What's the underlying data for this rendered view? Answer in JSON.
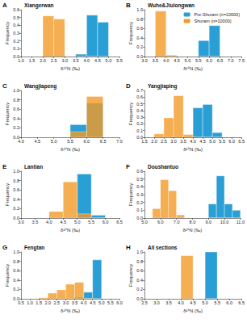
{
  "chart_data": [
    {
      "type": "histogram",
      "panel_label": "A",
      "title": "Xiangerwan",
      "x_label": "δ¹⁵N (‰)",
      "y_label": "Frequency",
      "grid": false,
      "bins": [
        2.0,
        2.5,
        3.0,
        3.5,
        4.0,
        4.5,
        5.0
      ],
      "series": [
        {
          "name": "Pre-Shuram (n=10000)",
          "color": "#2a9fd6",
          "values": [
            0,
            0,
            0,
            0.03,
            0.53,
            0.44
          ]
        },
        {
          "name": "Shuram (n=10000)",
          "color": "#f29a26",
          "values": [
            0.52,
            0.48,
            0,
            0,
            0,
            0
          ]
        }
      ],
      "xlim": [
        1.0,
        5.5
      ],
      "xticks": [
        {
          "value": 1,
          "label": "1.0"
        },
        1.5,
        {
          "value": 2,
          "label": "2.0"
        },
        2.5,
        {
          "value": 3,
          "label": "3.0"
        },
        3.5,
        {
          "value": 4,
          "label": "4.0"
        },
        4.5,
        {
          "value": 5,
          "label": "5.0"
        },
        5.5
      ],
      "ylim": [
        0,
        0.6
      ],
      "yticks": [
        {
          "value": 0,
          "label": "0.0"
        },
        0.1,
        0.2,
        0.3,
        0.4,
        0.5,
        0.6
      ]
    },
    {
      "type": "histogram",
      "panel_label": "B",
      "title": "Wuhe&Jiulongwan",
      "x_label": "δ¹⁵N (‰)",
      "y_label": "Frequency",
      "grid": false,
      "legend": "upper right",
      "bins": [
        3.5,
        4.0,
        4.5,
        5.0,
        5.5,
        6.0,
        6.5
      ],
      "series": [
        {
          "name": "Pre-Shuram (n=10000)",
          "color": "#2a9fd6",
          "values": [
            0,
            0,
            0,
            0,
            0.34,
            0.66
          ]
        },
        {
          "name": "Shuram (n=10000)",
          "color": "#f29a26",
          "values": [
            0.97,
            0.03,
            0,
            0,
            0,
            0
          ]
        }
      ],
      "xlim": [
        3.0,
        7.5
      ],
      "xticks": [
        {
          "value": 3,
          "label": "3.0"
        },
        3.5,
        {
          "value": 4,
          "label": "4.0"
        },
        4.5,
        {
          "value": 5,
          "label": "5.0"
        },
        5.5,
        {
          "value": 6,
          "label": "6.0"
        },
        6.5,
        {
          "value": 7,
          "label": "7.0"
        },
        7.5
      ],
      "ylim": [
        0,
        1.0
      ],
      "yticks": [
        {
          "value": 0,
          "label": "0.0"
        },
        0.2,
        0.4,
        0.6,
        0.8,
        {
          "value": 1,
          "label": "1.0"
        }
      ]
    },
    {
      "type": "histogram",
      "panel_label": "C",
      "title": "Wangjiapeng",
      "x_label": "δ¹⁵N (‰)",
      "y_label": "Frequency",
      "grid": false,
      "bins": [
        5.5,
        6.0,
        6.5
      ],
      "series": [
        {
          "name": "Pre-Shuram (n=10000)",
          "color": "#2a9fd6",
          "values": [
            0.27,
            0.73
          ]
        },
        {
          "name": "Shuram (n=10000)",
          "color": "#f29a26",
          "values": [
            0.12,
            0.87
          ]
        }
      ],
      "xlim": [
        4.0,
        7.0
      ],
      "xticks": [
        {
          "value": 4,
          "label": "4.0"
        },
        4.5,
        {
          "value": 5,
          "label": "5.0"
        },
        5.5,
        {
          "value": 6,
          "label": "6.0"
        },
        6.5,
        {
          "value": 7,
          "label": "7.0"
        }
      ],
      "ylim": [
        0,
        1.0
      ],
      "yticks": [
        {
          "value": 0,
          "label": "0.0"
        },
        0.2,
        0.4,
        0.6,
        0.8,
        {
          "value": 1,
          "label": "1.0"
        }
      ]
    },
    {
      "type": "histogram",
      "panel_label": "D",
      "title": "Yangjiaping",
      "x_label": "δ¹⁵N (‰)",
      "y_label": "Frequency",
      "grid": false,
      "bins": [
        2.0,
        2.5,
        3.0,
        3.5,
        4.0,
        4.5,
        5.0,
        5.5
      ],
      "series": [
        {
          "name": "Pre-Shuram (n=10000)",
          "color": "#2a9fd6",
          "values": [
            0,
            0,
            0,
            0,
            0.44,
            0.49,
            0.07
          ]
        },
        {
          "name": "Shuram (n=10000)",
          "color": "#f29a26",
          "values": [
            0.05,
            0.29,
            0.62,
            0.04,
            0,
            0,
            0
          ]
        }
      ],
      "xlim": [
        1.5,
        6.5
      ],
      "xticks": [
        1.5,
        {
          "value": 2,
          "label": "2.0"
        },
        2.5,
        {
          "value": 3,
          "label": "3.0"
        },
        3.5,
        {
          "value": 4,
          "label": "4.0"
        },
        4.5,
        {
          "value": 5,
          "label": "5.0"
        },
        5.5,
        {
          "value": 6,
          "label": "6.0"
        },
        6.5
      ],
      "ylim": [
        0,
        0.7
      ],
      "yticks": [
        {
          "value": 0,
          "label": "0.0"
        },
        0.1,
        0.2,
        0.3,
        0.4,
        0.5,
        0.6,
        0.7
      ]
    },
    {
      "type": "histogram",
      "panel_label": "E",
      "title": "Lantian",
      "x_label": "δ¹⁵N (‰)",
      "y_label": "Frequency",
      "grid": false,
      "bins": [
        4.0,
        4.5,
        5.0,
        5.5,
        6.0
      ],
      "series": [
        {
          "name": "Pre-Shuram (n=10000)",
          "color": "#2a9fd6",
          "values": [
            0,
            0,
            0.94,
            0.06
          ]
        },
        {
          "name": "Shuram (n=10000)",
          "color": "#f29a26",
          "values": [
            0.14,
            0.77,
            0.09,
            0
          ]
        }
      ],
      "xlim": [
        3.0,
        6.5
      ],
      "xticks": [
        {
          "value": 3,
          "label": "3.0"
        },
        3.5,
        {
          "value": 4,
          "label": "4.0"
        },
        4.5,
        {
          "value": 5,
          "label": "5.0"
        },
        5.5,
        {
          "value": 6,
          "label": "6.0"
        },
        6.5
      ],
      "ylim": [
        0,
        1.0
      ],
      "yticks": [
        {
          "value": 0,
          "label": "0.0"
        },
        0.2,
        0.4,
        0.6,
        0.8,
        {
          "value": 1,
          "label": "1.0"
        }
      ]
    },
    {
      "type": "histogram",
      "panel_label": "F",
      "title": "Doushantuo",
      "x_label": "δ¹⁵N (‰)",
      "y_label": "Frequency",
      "grid": false,
      "bins": [
        5.5,
        6.0,
        6.5,
        7.0,
        7.5,
        8.0,
        8.5,
        9.0,
        9.5,
        10.0,
        10.5,
        11.0
      ],
      "series": [
        {
          "name": "Pre-Shuram (n=10000)",
          "color": "#2a9fd6",
          "values": [
            0,
            0,
            0,
            0,
            0,
            0,
            0,
            0.18,
            0.54,
            0.18,
            0.1
          ]
        },
        {
          "name": "Shuram (n=10000)",
          "color": "#f29a26",
          "values": [
            0.12,
            0.49,
            0.35,
            0.04,
            0,
            0,
            0,
            0,
            0,
            0,
            0
          ]
        }
      ],
      "xlim": [
        5.0,
        11.0
      ],
      "xticks": [
        {
          "value": 5,
          "label": "5.0"
        },
        {
          "value": 6,
          "label": "6.0"
        },
        {
          "value": 7,
          "label": "7.0"
        },
        {
          "value": 8,
          "label": "8.0"
        },
        {
          "value": 9,
          "label": "9.0"
        },
        {
          "value": 10,
          "label": "10.0"
        },
        {
          "value": 11,
          "label": "11.0"
        }
      ],
      "ylim": [
        0,
        0.6
      ],
      "yticks": [
        {
          "value": 0,
          "label": "0.0"
        },
        0.1,
        0.2,
        0.3,
        0.4,
        0.5,
        0.6
      ]
    },
    {
      "type": "histogram",
      "panel_label": "G",
      "title": "Fengtan",
      "x_label": "δ¹⁵N (‰)",
      "y_label": "Frequency",
      "grid": false,
      "bins": [
        1.5,
        2.0,
        2.5,
        3.0,
        3.5,
        4.0,
        4.5,
        5.0
      ],
      "series": [
        {
          "name": "Pre-Shuram (n=10000)",
          "color": "#2a9fd6",
          "values": [
            0,
            0,
            0,
            0,
            0.03,
            0.14,
            0.83
          ]
        },
        {
          "name": "Shuram (n=10000)",
          "color": "#f29a26",
          "values": [
            0.02,
            0.12,
            0.19,
            0.31,
            0.35,
            0.01,
            0
          ]
        }
      ],
      "xlim": [
        0.5,
        6.0
      ],
      "xticks": [
        0.5,
        {
          "value": 1,
          "label": "1.0"
        },
        1.5,
        {
          "value": 2,
          "label": "2.0"
        },
        2.5,
        {
          "value": 3,
          "label": "3.0"
        },
        3.5,
        {
          "value": 4,
          "label": "4.0"
        },
        4.5,
        {
          "value": 5,
          "label": "5.0"
        },
        5.5,
        {
          "value": 6,
          "label": "6.0"
        }
      ],
      "ylim": [
        0,
        1.0
      ],
      "yticks": [
        {
          "value": 0,
          "label": "0.0"
        },
        0.2,
        0.4,
        0.6,
        0.8,
        {
          "value": 1,
          "label": "1.0"
        }
      ]
    },
    {
      "type": "histogram",
      "panel_label": "H",
      "title": "All sections",
      "x_label": "δ¹⁵N (‰)",
      "y_label": "Frequency",
      "grid": false,
      "bins": [
        4.0,
        4.5,
        5.0,
        5.5
      ],
      "series": [
        {
          "name": "Pre-Shuram (n=10000)",
          "color": "#2a9fd6",
          "values": [
            0,
            0,
            1.0
          ]
        },
        {
          "name": "Shuram (n=10000)",
          "color": "#f29a26",
          "values": [
            0.92,
            0,
            0
          ]
        }
      ],
      "xlim": [
        2.5,
        6.5
      ],
      "xticks": [
        2.5,
        {
          "value": 3,
          "label": "3.0"
        },
        3.5,
        {
          "value": 4,
          "label": "4.0"
        },
        4.5,
        {
          "value": 5,
          "label": "5.0"
        },
        5.5,
        {
          "value": 6,
          "label": "6.0"
        },
        6.5
      ],
      "ylim": [
        0,
        1.0
      ],
      "yticks": [
        {
          "value": 0,
          "label": "0.0"
        },
        0.2,
        0.4,
        0.6,
        0.8,
        {
          "value": 1,
          "label": "1.0"
        }
      ]
    }
  ]
}
